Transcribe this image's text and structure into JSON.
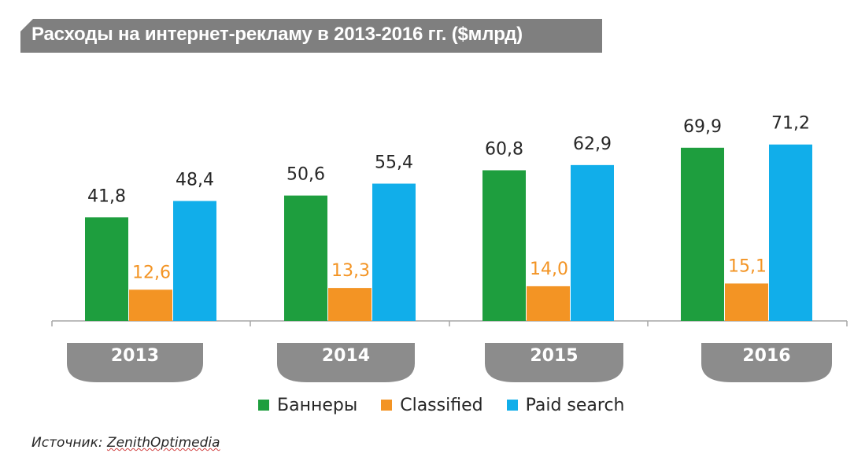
{
  "title": "Расходы на интернет-рекламу в 2013-2016 гг. ($млрд)",
  "source_label": "Источник:",
  "source_name": "ZenithOptimedia",
  "chart_data": {
    "type": "bar",
    "title": "Расходы на интернет-рекламу в 2013-2016 гг. ($млрд)",
    "categories": [
      "2013",
      "2014",
      "2015",
      "2016"
    ],
    "series": [
      {
        "name": "Баннеры",
        "color": "#1e9e3e",
        "label_color": "#262626",
        "values": [
          41.8,
          50.6,
          60.8,
          69.9
        ],
        "labels": [
          "41,8",
          "50,6",
          "60,8",
          "69,9"
        ]
      },
      {
        "name": "Classified",
        "color": "#f39424",
        "label_color": "#f39424",
        "values": [
          12.6,
          13.3,
          14.0,
          15.1
        ],
        "labels": [
          "12,6",
          "13,3",
          "14,0",
          "15,1"
        ]
      },
      {
        "name": "Paid search",
        "color": "#11aeea",
        "label_color": "#262626",
        "values": [
          48.4,
          55.4,
          62.9,
          71.2
        ],
        "labels": [
          "48,4",
          "55,4",
          "62,9",
          "71,2"
        ]
      }
    ],
    "xlabel": "",
    "ylabel": "",
    "ylim": [
      0,
      100
    ],
    "grid": false,
    "legend": "bottom"
  }
}
